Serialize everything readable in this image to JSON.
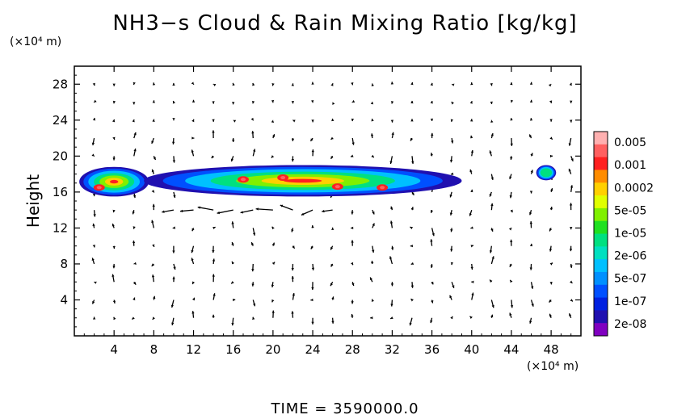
{
  "page": {
    "title": "NH3−s Cloud & Rain Mixing Ratio [kg/kg]",
    "y_unit": "(×10⁴ m)",
    "x_unit": "(×10⁴ m)",
    "time_text": "TIME  =  3590000.0"
  },
  "chart_data": {
    "type": "heatmap",
    "title": "NH3−s Cloud & Rain Mixing Ratio [kg/kg]",
    "xlabel": "",
    "ylabel": "Height",
    "x_unit": "×10⁴ m",
    "y_unit": "×10⁴ m",
    "xlim": [
      0,
      51
    ],
    "ylim": [
      0,
      30
    ],
    "x_ticks": [
      4,
      8,
      12,
      16,
      20,
      24,
      28,
      32,
      36,
      40,
      44,
      48
    ],
    "y_ticks": [
      4,
      8,
      12,
      16,
      20,
      24,
      28
    ],
    "colorbar": {
      "labels": [
        "0.005",
        "0.001",
        "0.0002",
        "5e-05",
        "1e-05",
        "2e-06",
        "5e-07",
        "1e-07",
        "2e-08"
      ],
      "colors": [
        "#ffb0b0",
        "#ff6060",
        "#ff2020",
        "#ff8c00",
        "#ffd000",
        "#e0ff00",
        "#80f000",
        "#20e020",
        "#00e080",
        "#00e0c0",
        "#00c0ff",
        "#0090ff",
        "#0050ff",
        "#0020e0",
        "#2010b0",
        "#8000c0"
      ]
    },
    "cloud_regions": [
      {
        "x_range": [
          0.5,
          7.5
        ],
        "y_range": [
          15.5,
          18.8
        ],
        "level": "up to 0.001"
      },
      {
        "x_range": [
          7,
          39
        ],
        "y_range": [
          15.5,
          19.0
        ],
        "level": "up to 0.001"
      },
      {
        "x_range": [
          46.5,
          48.5
        ],
        "y_range": [
          17.3,
          19.0
        ],
        "level": "up to 1e-05"
      }
    ],
    "vectors": "wind vectors overlaid across full domain",
    "grid": false,
    "time": "3590000.0"
  }
}
